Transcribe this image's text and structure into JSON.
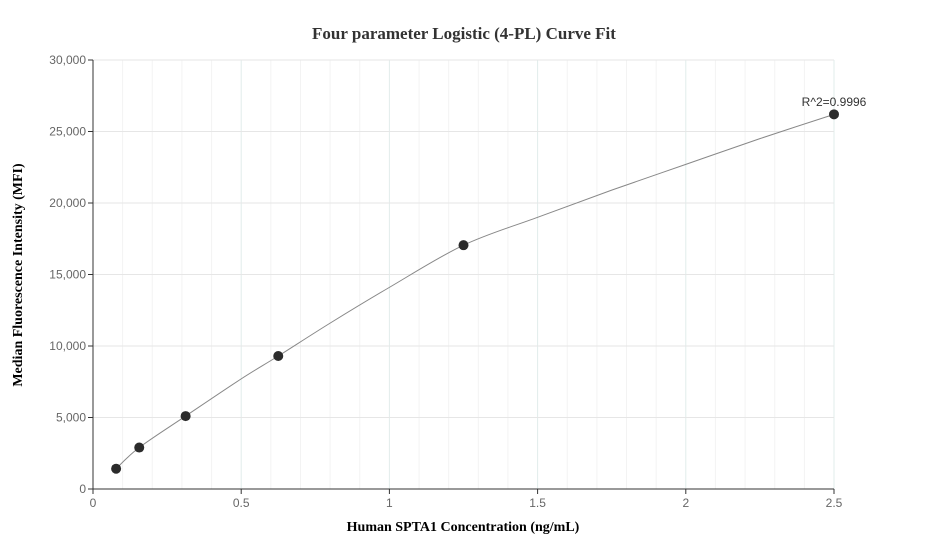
{
  "chart_data": {
    "type": "scatter",
    "title": "Four parameter Logistic (4-PL) Curve Fit",
    "xlabel": "Human SPTA1 Concentration (ng/mL)",
    "ylabel": "Median Fluorescence Intensity (MFI)",
    "xlim": [
      0,
      2.5
    ],
    "ylim": [
      0,
      30000
    ],
    "x_ticks": [
      0,
      0.5,
      1,
      1.5,
      2,
      2.5
    ],
    "x_tick_labels": [
      "0",
      "0.5",
      "1",
      "1.5",
      "2",
      "2.5"
    ],
    "y_ticks": [
      0,
      5000,
      10000,
      15000,
      20000,
      25000,
      30000
    ],
    "y_tick_labels": [
      "0",
      "5,000",
      "10,000",
      "15,000",
      "20,000",
      "25,000",
      "30,000"
    ],
    "grid": true,
    "series": [
      {
        "points": [
          {
            "x": 0.078,
            "y": 1420
          },
          {
            "x": 0.156,
            "y": 2900
          },
          {
            "x": 0.3125,
            "y": 5100
          },
          {
            "x": 0.625,
            "y": 9300
          },
          {
            "x": 1.25,
            "y": 17050
          },
          {
            "x": 2.5,
            "y": 26200
          }
        ],
        "color": "#2b2b2b"
      }
    ],
    "fit_curve": {
      "color": "#888888",
      "points": [
        {
          "x": 0.078,
          "y": 1420
        },
        {
          "x": 0.156,
          "y": 2900
        },
        {
          "x": 0.3125,
          "y": 5100
        },
        {
          "x": 0.5,
          "y": 7700
        },
        {
          "x": 0.625,
          "y": 9300
        },
        {
          "x": 0.8,
          "y": 11600
        },
        {
          "x": 1.0,
          "y": 14100
        },
        {
          "x": 1.25,
          "y": 17050
        },
        {
          "x": 1.5,
          "y": 19000
        },
        {
          "x": 1.75,
          "y": 20900
        },
        {
          "x": 2.0,
          "y": 22700
        },
        {
          "x": 2.25,
          "y": 24500
        },
        {
          "x": 2.5,
          "y": 26200
        }
      ]
    },
    "annotation": {
      "text": "R^2=0.9996",
      "x": 2.5,
      "y": 26200
    }
  }
}
